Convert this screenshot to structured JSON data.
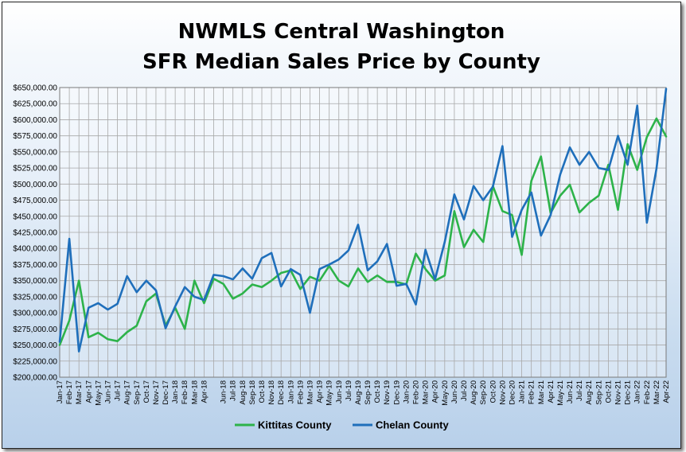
{
  "chart_data": {
    "type": "line",
    "title": [
      "NWMLS Central Washington",
      "SFR Median Sales Price by County"
    ],
    "y_ticks": [
      "$200,000.00",
      "$225,000.00",
      "$250,000.00",
      "$275,000.00",
      "$300,000.00",
      "$325,000.00",
      "$350,000.00",
      "$375,000.00",
      "$400,000.00",
      "$425,000.00",
      "$450,000.00",
      "$475,000.00",
      "$500,000.00",
      "$525,000.00",
      "$550,000.00",
      "$575,000.00",
      "$600,000.00",
      "$625,000.00",
      "$650,000.00"
    ],
    "ylim": [
      200000,
      650000
    ],
    "grid": true,
    "legend_position": "bottom",
    "x": [
      "Jan-17",
      "Feb-17",
      "Mar-17",
      "Apr-17",
      "May-17",
      "Jun-17",
      "Jul-17",
      "Aug-17",
      "Sep-17",
      "Oct-17",
      "Nov-17",
      "Dec-17",
      "Jan-18",
      "Feb-18",
      "Mar-18",
      "Apr-18",
      "May-18",
      "Jun-18",
      "Jul-18",
      "Aug-18",
      "Sep-18",
      "Oct-18",
      "Nov-18",
      "Dec-18",
      "Jan-19",
      "Feb-19",
      "Mar-19",
      "Apr-19",
      "May-19",
      "Jun-19",
      "Jul-19",
      "Aug-19",
      "Sep-19",
      "Oct-19",
      "Nov-19",
      "Dec-19",
      "Jan-20",
      "Feb-20",
      "Mar-20",
      "Apr-20",
      "May-20",
      "Jun-20",
      "Jul-20",
      "Aug-20",
      "Sep-20",
      "Oct-20",
      "Nov-20",
      "Dec-20",
      "Jan-21",
      "Feb-21",
      "Mar-21",
      "Apr-21",
      "May-21",
      "Jun-21",
      "Jul-21",
      "Aug-21",
      "Sep-21",
      "Oct-21",
      "Nov-21",
      "Dec-21",
      "Jan-22",
      "Feb-22",
      "Mar-22",
      "Apr-22"
    ],
    "x_tick_labels": [
      "Jan-17",
      "Feb-17",
      "Mar-17",
      "Apr-17",
      "May-17",
      "Jun-17",
      "Jul-17",
      "Aug-17",
      "Sep-17",
      "Oct-17",
      "Nov-17",
      "Dec-17",
      "Jan-18",
      "Feb-18",
      "Mar-18",
      "Apr-18",
      "Jun-18",
      "Jul-18",
      "Aug-18",
      "Sep-18",
      "Oct-18",
      "Nov-18",
      "Dec-18",
      "Jan-19",
      "Feb-19",
      "Mar-19",
      "Apr-19",
      "May-19",
      "Jun-19",
      "Jul-19",
      "Aug-19",
      "Sep-19",
      "Oct-19",
      "Nov-19",
      "Dec-19",
      "Jan-20",
      "Feb-20",
      "Mar-20",
      "Apr-20",
      "May-20",
      "Jun-20",
      "Jul-20",
      "Aug-20",
      "Sep-20",
      "Oct-20",
      "Nov-20",
      "Dec-20",
      "Jan-21",
      "Feb-21",
      "Mar-21",
      "Apr-21",
      "May-21",
      "Jun-21",
      "Jul-21",
      "Aug-21",
      "Sep-21",
      "Oct-21",
      "Nov-21",
      "Dec-21",
      "Jan-22",
      "Feb-22",
      "Mar-22",
      "Apr-22"
    ],
    "series": [
      {
        "name": "Kittitas County",
        "color": "#2db34a",
        "values": [
          250000,
          288000,
          350000,
          262000,
          269000,
          259000,
          256000,
          270000,
          280000,
          318000,
          330000,
          280000,
          308000,
          275000,
          350000,
          315000,
          353000,
          345000,
          322000,
          330000,
          344000,
          340000,
          350000,
          362000,
          366000,
          337000,
          356000,
          350000,
          373000,
          350000,
          341000,
          369000,
          348000,
          358000,
          348000,
          348000,
          344000,
          392000,
          368000,
          350000,
          358000,
          458000,
          402000,
          429000,
          410000,
          497000,
          458000,
          452000,
          390000,
          505000,
          543000,
          455000,
          482000,
          499000,
          456000,
          471000,
          482000,
          530000,
          460000,
          562000,
          522000,
          573000,
          602000,
          574000
        ]
      },
      {
        "name": "Chelan County",
        "color": "#1f6fbb",
        "values": [
          255000,
          415000,
          240000,
          308000,
          315000,
          305000,
          314000,
          357000,
          332000,
          350000,
          335000,
          276000,
          310000,
          340000,
          325000,
          320000,
          359000,
          357000,
          352000,
          369000,
          353000,
          385000,
          393000,
          341000,
          368000,
          359000,
          300000,
          368000,
          375000,
          383000,
          397000,
          437000,
          366000,
          380000,
          407000,
          342000,
          345000,
          313000,
          398000,
          352000,
          410000,
          484000,
          445000,
          497000,
          475000,
          496000,
          559000,
          418000,
          460000,
          487000,
          420000,
          452000,
          515000,
          557000,
          530000,
          550000,
          525000,
          522000,
          575000,
          530000,
          622000,
          440000,
          524000,
          648000
        ]
      }
    ]
  }
}
